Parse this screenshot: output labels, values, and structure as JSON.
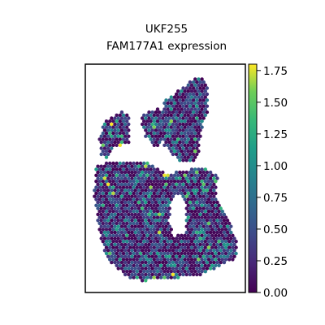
{
  "chart_data": {
    "type": "scatter",
    "subtype": "spatial hexbin",
    "title": "UKF255",
    "subtitle": "FAM177A1 expression",
    "colormap": "viridis",
    "colorbar": {
      "min": 0.0,
      "max": 1.8,
      "ticks": [
        "0.00",
        "0.25",
        "0.50",
        "0.75",
        "1.00",
        "1.25",
        "1.50",
        "1.75"
      ]
    },
    "axes": {
      "frame": true,
      "ticks_shown": false,
      "grid": false
    },
    "tissue_regions": [
      {
        "name": "left lobe",
        "shape": "polygon"
      },
      {
        "name": "middle upper lobe",
        "shape": "polygon"
      },
      {
        "name": "right upper arm",
        "shape": "polygon"
      },
      {
        "name": "main body",
        "shape": "polygon"
      }
    ],
    "value_distribution": "mostly near 0.0-0.5, sparse spots between 0.75 and 1.75"
  }
}
